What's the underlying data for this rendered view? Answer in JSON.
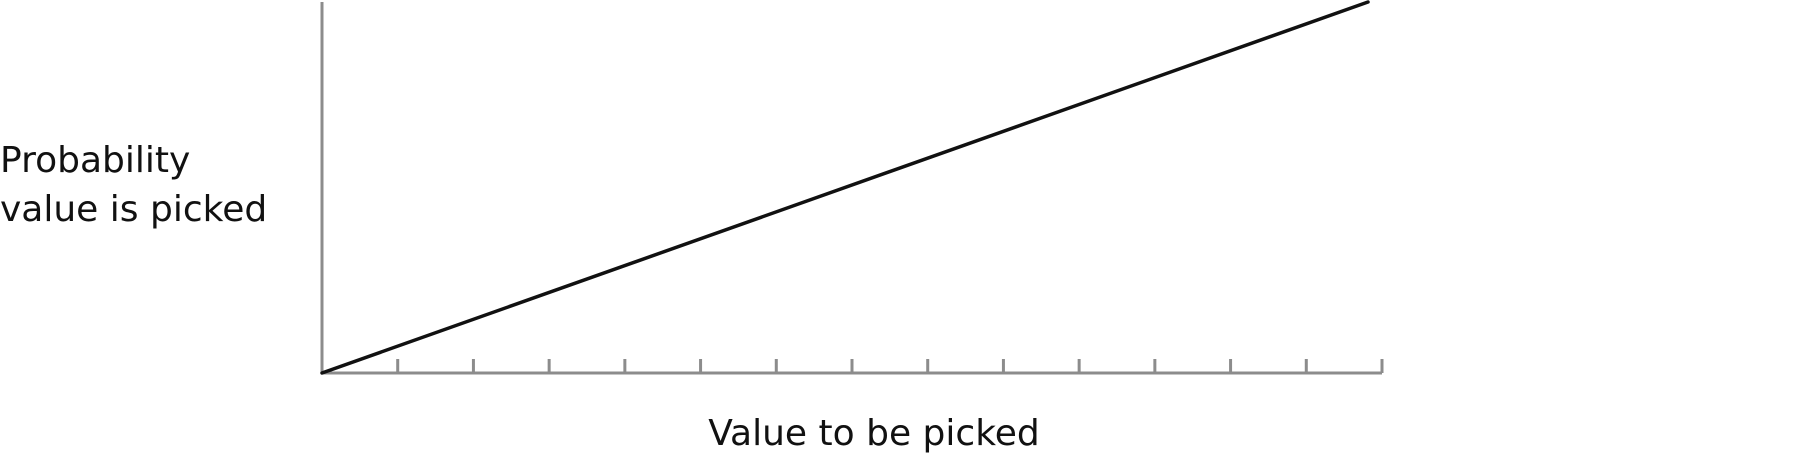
{
  "chart_data": {
    "type": "line",
    "title": "",
    "ylabel_lines": [
      "Probability",
      "value is picked"
    ],
    "xlabel": "Value to be picked",
    "x": [
      0,
      1
    ],
    "series": [
      {
        "values": [
          0,
          1
        ]
      }
    ],
    "xlim": [
      0,
      1
    ],
    "ylim": [
      0,
      1
    ],
    "x_tick_count": 14,
    "grid": false,
    "legend": "none",
    "colors": {
      "line": "#111111",
      "axis": "#8c8c8c",
      "text": "#111111"
    }
  }
}
